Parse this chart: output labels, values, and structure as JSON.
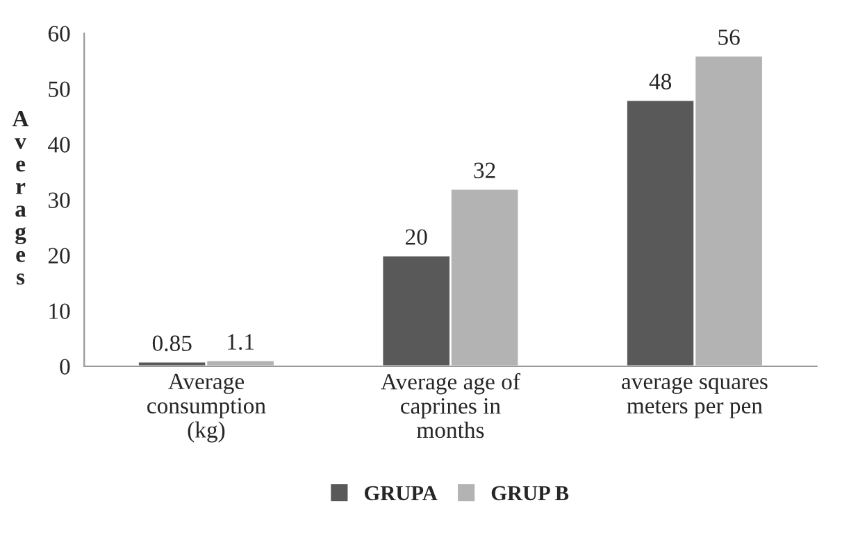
{
  "chart_data": {
    "type": "bar",
    "ylabel": "Averages",
    "categories": [
      "Average\nconsumption\n(kg)",
      "Average age of\ncaprines in\nmonths",
      "average squares\nmeters per pen"
    ],
    "series": [
      {
        "name": "GRUPA",
        "color": "#595959",
        "values": [
          0.85,
          20,
          48
        ]
      },
      {
        "name": "GRUP B",
        "color": "#b3b3b3",
        "values": [
          1.1,
          32,
          56
        ]
      }
    ],
    "ylim": [
      0,
      60
    ],
    "yticks": [
      0,
      10,
      20,
      30,
      40,
      50,
      60
    ],
    "grid": false,
    "legend": "bottom",
    "data_labels": true
  }
}
